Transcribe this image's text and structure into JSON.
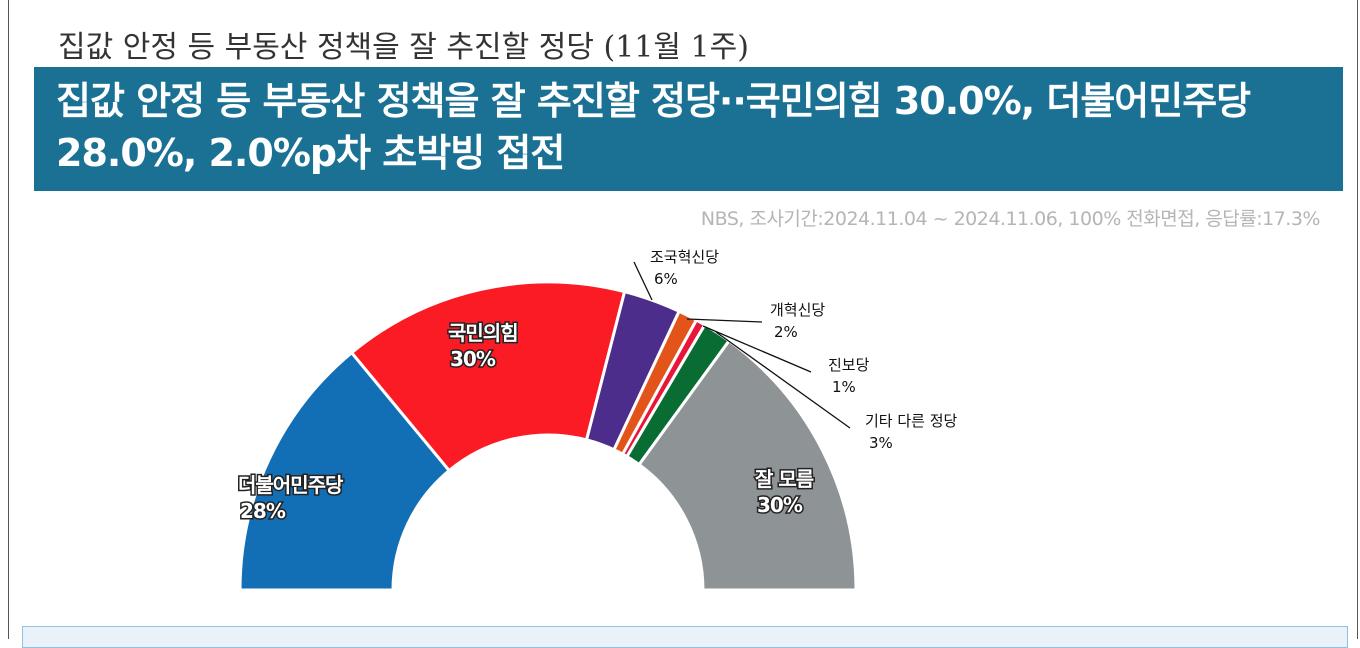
{
  "subtitle": "집값 안정 등 부동산 정책을 잘 추진할 정당 (11월 1주)",
  "headline": "집값 안정 등 부동산 정책을 잘 추진할 정당··국민의힘 30.0%, 더불어민주당 28.0%, 2.0%p차 초박빙 접전",
  "source": "NBS, 조사기간:2024.11.04 ~ 2024.11.06, 100% 전화면접, 응답률:17.3%",
  "chart_data": {
    "type": "pie",
    "subtype": "semi-donut",
    "title": "집값 안정 등 부동산 정책을 잘 추진할 정당 (11월 1주)",
    "categories": [
      "더불어민주당",
      "국민의힘",
      "조국혁신당",
      "개혁신당",
      "진보당",
      "기타 다른 정당",
      "잘 모름"
    ],
    "values": [
      28,
      30,
      6,
      2,
      1,
      3,
      30
    ],
    "labels": [
      "28%",
      "30%",
      "6%",
      "2%",
      "1%",
      "3%",
      "30%"
    ],
    "colors": [
      "#136fb5",
      "#fb1b24",
      "#4d2d8b",
      "#e2541a",
      "#e8173a",
      "#086c33",
      "#8e9396"
    ]
  }
}
